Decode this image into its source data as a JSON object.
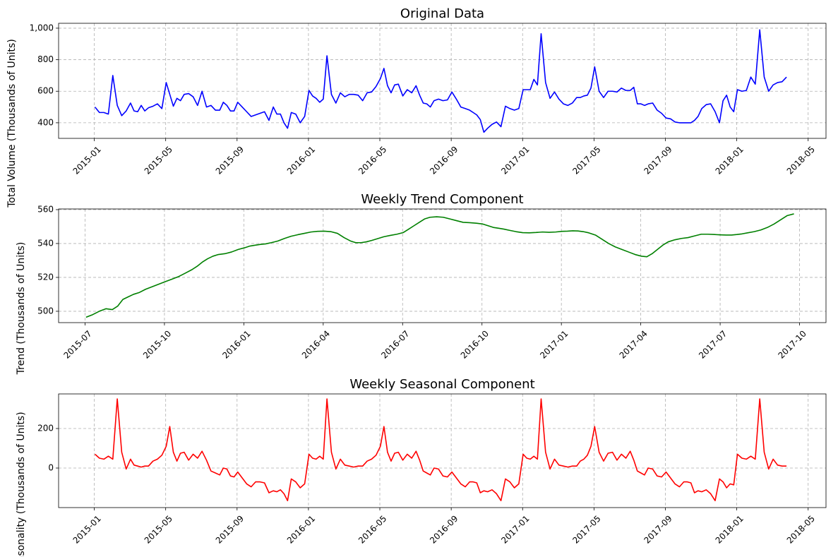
{
  "chart_data": [
    {
      "type": "line",
      "title": "Original Data",
      "y_label": "Total Volume (Thousands of Units)",
      "color": "#0000ff",
      "grid": true,
      "xlim": [
        "2014-11",
        "2018-06"
      ],
      "xticks": [
        "2015-01",
        "2015-05",
        "2015-09",
        "2016-01",
        "2016-05",
        "2016-09",
        "2017-01",
        "2017-05",
        "2017-09",
        "2018-01",
        "2018-05"
      ],
      "ylim": [
        301,
        1031
      ],
      "yticks": [
        400,
        600,
        800,
        {
          "value": 1000,
          "label": "1,000"
        }
      ],
      "x": [
        "2015-01",
        "2015-01",
        "2015-01",
        "2015-01",
        "2015-02",
        "2015-02",
        "2015-02",
        "2015-02",
        "2015-03",
        "2015-03",
        "2015-03",
        "2015-03",
        "2015-03",
        "2015-04",
        "2015-04",
        "2015-04",
        "2015-04",
        "2015-05",
        "2015-05",
        "2015-05",
        "2015-05",
        "2015-05",
        "2015-06",
        "2015-06",
        "2015-06",
        "2015-06",
        "2015-07",
        "2015-07",
        "2015-07",
        "2015-07",
        "2015-08",
        "2015-08",
        "2015-08",
        "2015-08",
        "2015-08",
        "2015-09",
        "2015-09",
        "2015-09",
        "2015-09",
        "2015-10",
        "2015-10",
        "2015-10",
        "2015-10",
        "2015-11",
        "2015-11",
        "2015-11",
        "2015-11",
        "2015-11",
        "2015-12",
        "2015-12",
        "2015-12",
        "2015-12",
        "2016-01",
        "2016-01",
        "2016-01",
        "2016-01",
        "2016-01",
        "2016-02",
        "2016-02",
        "2016-02",
        "2016-02",
        "2016-03",
        "2016-03",
        "2016-03",
        "2016-03",
        "2016-04",
        "2016-04",
        "2016-04",
        "2016-04",
        "2016-05",
        "2016-05",
        "2016-05",
        "2016-05",
        "2016-05",
        "2016-06",
        "2016-06",
        "2016-06",
        "2016-06",
        "2016-07",
        "2016-07",
        "2016-07",
        "2016-07",
        "2016-07",
        "2016-08",
        "2016-08",
        "2016-08",
        "2016-08",
        "2016-09",
        "2016-09",
        "2016-09",
        "2016-09",
        "2016-10",
        "2016-10",
        "2016-10",
        "2016-10",
        "2016-10",
        "2016-11",
        "2016-11",
        "2016-11",
        "2016-11",
        "2016-12",
        "2016-12",
        "2016-12",
        "2016-12",
        "2017-01",
        "2017-01",
        "2017-01",
        "2017-01",
        "2017-01",
        "2017-02",
        "2017-02",
        "2017-02",
        "2017-02",
        "2017-03",
        "2017-03",
        "2017-03",
        "2017-03",
        "2017-04",
        "2017-04",
        "2017-04",
        "2017-04",
        "2017-04",
        "2017-05",
        "2017-05",
        "2017-05",
        "2017-05",
        "2017-06",
        "2017-06",
        "2017-06",
        "2017-06",
        "2017-07",
        "2017-07",
        "2017-07",
        "2017-07",
        "2017-07",
        "2017-08",
        "2017-08",
        "2017-08",
        "2017-08",
        "2017-09",
        "2017-09",
        "2017-09",
        "2017-09",
        "2017-10",
        "2017-10",
        "2017-10",
        "2017-10",
        "2017-10",
        "2017-11",
        "2017-11",
        "2017-11",
        "2017-11",
        "2017-12",
        "2017-12",
        "2017-12",
        "2017-12",
        "2017-12",
        "2018-01",
        "2018-01",
        "2018-01",
        "2018-01",
        "2018-02",
        "2018-02",
        "2018-02",
        "2018-02",
        "2018-03",
        "2018-03",
        "2018-03",
        "2018-03"
      ],
      "values": [
        500,
        465,
        465,
        455,
        700,
        510,
        445,
        475,
        525,
        475,
        470,
        510,
        475,
        495,
        505,
        520,
        490,
        655,
        580,
        505,
        555,
        540,
        580,
        585,
        565,
        510,
        600,
        500,
        510,
        480,
        480,
        530,
        510,
        475,
        475,
        530,
        500,
        470,
        440,
        450,
        460,
        470,
        415,
        500,
        455,
        455,
        400,
        365,
        465,
        455,
        400,
        440,
        605,
        570,
        555,
        530,
        550,
        825,
        580,
        525,
        590,
        565,
        580,
        580,
        575,
        540,
        590,
        595,
        630,
        680,
        745,
        635,
        590,
        640,
        645,
        570,
        610,
        590,
        635,
        575,
        525,
        520,
        500,
        540,
        550,
        540,
        545,
        595,
        550,
        500,
        490,
        480,
        465,
        450,
        420,
        340,
        365,
        390,
        405,
        375,
        505,
        490,
        480,
        490,
        610,
        610,
        610,
        675,
        640,
        965,
        655,
        555,
        595,
        550,
        520,
        510,
        525,
        560,
        560,
        570,
        575,
        620,
        755,
        600,
        560,
        600,
        600,
        595,
        620,
        605,
        605,
        625,
        520,
        520,
        510,
        520,
        525,
        480,
        460,
        430,
        425,
        405,
        400,
        400,
        400,
        400,
        415,
        440,
        490,
        515,
        520,
        470,
        400,
        540,
        575,
        500,
        470,
        610,
        600,
        605,
        690,
        645,
        990,
        690,
        600,
        640,
        655,
        660,
        690
      ]
    },
    {
      "type": "line",
      "title": "Weekly Trend Component",
      "y_label": "Trend (Thousands of Units)",
      "color": "#008000",
      "grid": true,
      "xlim": [
        "2015-06",
        "2017-11"
      ],
      "xticks": [
        "2015-07",
        "2015-10",
        "2016-01",
        "2016-04",
        "2016-07",
        "2016-10",
        "2017-01",
        "2017-04",
        "2017-07",
        "2017-10"
      ],
      "ylim": [
        493.3,
        560.4
      ],
      "yticks": [
        500,
        520,
        540,
        560
      ],
      "x": [
        "2015-07",
        "2015-07",
        "2015-07",
        "2015-07",
        "2015-08",
        "2015-08",
        "2015-08",
        "2015-08",
        "2015-08",
        "2015-09",
        "2015-09",
        "2015-09",
        "2015-09",
        "2015-10",
        "2015-10",
        "2015-10",
        "2015-10",
        "2015-11",
        "2015-11",
        "2015-11",
        "2015-11",
        "2015-11",
        "2015-12",
        "2015-12",
        "2015-12",
        "2015-12",
        "2016-01",
        "2016-01",
        "2016-01",
        "2016-01",
        "2016-01",
        "2016-02",
        "2016-02",
        "2016-02",
        "2016-02",
        "2016-03",
        "2016-03",
        "2016-03",
        "2016-03",
        "2016-04",
        "2016-04",
        "2016-04",
        "2016-04",
        "2016-05",
        "2016-05",
        "2016-05",
        "2016-05",
        "2016-05",
        "2016-06",
        "2016-06",
        "2016-06",
        "2016-06",
        "2016-07",
        "2016-07",
        "2016-07",
        "2016-07",
        "2016-07",
        "2016-08",
        "2016-08",
        "2016-08",
        "2016-08",
        "2016-09",
        "2016-09",
        "2016-09",
        "2016-09",
        "2016-10",
        "2016-10",
        "2016-10",
        "2016-10",
        "2016-10",
        "2016-11",
        "2016-11",
        "2016-11",
        "2016-11",
        "2016-12",
        "2016-12",
        "2016-12",
        "2016-12",
        "2017-01",
        "2017-01",
        "2017-01",
        "2017-01",
        "2017-01",
        "2017-02",
        "2017-02",
        "2017-02",
        "2017-02",
        "2017-03",
        "2017-03",
        "2017-03",
        "2017-03",
        "2017-04",
        "2017-04",
        "2017-04",
        "2017-04",
        "2017-04",
        "2017-05",
        "2017-05",
        "2017-05",
        "2017-05",
        "2017-06",
        "2017-06",
        "2017-06",
        "2017-06",
        "2017-07",
        "2017-07",
        "2017-07",
        "2017-07",
        "2017-07",
        "2017-08",
        "2017-08",
        "2017-08",
        "2017-08",
        "2017-09",
        "2017-09",
        "2017-09",
        "2017-09"
      ],
      "values": [
        496.5,
        498,
        500,
        501.5,
        501,
        503,
        507,
        508.5,
        510,
        511,
        513,
        514.5,
        516,
        517.5,
        519,
        520.5,
        522.5,
        524.5,
        526.5,
        529,
        531,
        532.5,
        533.5,
        534,
        535,
        536.5,
        537.5,
        538.5,
        539,
        539.5,
        539.8,
        540.5,
        541.5,
        543,
        544.3,
        545.2,
        546,
        546.8,
        547.2,
        547.3,
        547,
        546,
        543.5,
        541.5,
        540.5,
        540.5,
        541,
        541.8,
        542.8,
        544,
        544.8,
        545.5,
        546.5,
        548.5,
        550.5,
        552.5,
        554.5,
        555.5,
        555.8,
        555.5,
        554.5,
        553.5,
        552.5,
        552.3,
        552,
        551.5,
        550.5,
        549.5,
        549,
        548.5,
        547.8,
        547,
        546.4,
        546.3,
        546.5,
        546.8,
        546.6,
        546.8,
        547.2,
        547.3,
        547.5,
        547.4,
        547,
        546.3,
        545,
        542.5,
        540,
        538,
        536.5,
        535,
        533.5,
        532.5,
        532.2,
        534,
        536.5,
        539,
        541,
        542.2,
        543,
        543.5,
        544.5,
        545.5,
        545.5,
        545.3,
        545.1,
        545,
        545,
        545.3,
        545.7,
        546.3,
        547,
        548,
        549.5,
        551.5,
        554,
        556.5,
        557.5
      ]
    },
    {
      "type": "line",
      "title": "Weekly Seasonal Component",
      "y_label": "Seasonality (Thousands of Units)",
      "color": "#ff0000",
      "grid": true,
      "xlim": [
        "2014-11",
        "2018-06"
      ],
      "xticks": [
        "2015-01",
        "2015-05",
        "2015-09",
        "2016-01",
        "2016-05",
        "2016-09",
        "2017-01",
        "2017-05",
        "2017-09",
        "2018-01",
        "2018-05"
      ],
      "ylim": [
        -200,
        375
      ],
      "yticks": [
        0,
        200
      ],
      "x": [
        "2015-01",
        "2015-01",
        "2015-01",
        "2015-01",
        "2015-02",
        "2015-02",
        "2015-02",
        "2015-02",
        "2015-03",
        "2015-03",
        "2015-03",
        "2015-03",
        "2015-03",
        "2015-04",
        "2015-04",
        "2015-04",
        "2015-04",
        "2015-05",
        "2015-05",
        "2015-05",
        "2015-05",
        "2015-05",
        "2015-06",
        "2015-06",
        "2015-06",
        "2015-06",
        "2015-07",
        "2015-07",
        "2015-07",
        "2015-07",
        "2015-08",
        "2015-08",
        "2015-08",
        "2015-08",
        "2015-08",
        "2015-09",
        "2015-09",
        "2015-09",
        "2015-09",
        "2015-10",
        "2015-10",
        "2015-10",
        "2015-10",
        "2015-11",
        "2015-11",
        "2015-11",
        "2015-11",
        "2015-11",
        "2015-12",
        "2015-12",
        "2015-12",
        "2015-12",
        "2016-01",
        "2016-01",
        "2016-01",
        "2016-01",
        "2016-01",
        "2016-02",
        "2016-02",
        "2016-02",
        "2016-02",
        "2016-03",
        "2016-03",
        "2016-03",
        "2016-03",
        "2016-04",
        "2016-04",
        "2016-04",
        "2016-04",
        "2016-05",
        "2016-05",
        "2016-05",
        "2016-05",
        "2016-05",
        "2016-06",
        "2016-06",
        "2016-06",
        "2016-06",
        "2016-07",
        "2016-07",
        "2016-07",
        "2016-07",
        "2016-07",
        "2016-08",
        "2016-08",
        "2016-08",
        "2016-08",
        "2016-09",
        "2016-09",
        "2016-09",
        "2016-09",
        "2016-10",
        "2016-10",
        "2016-10",
        "2016-10",
        "2016-10",
        "2016-11",
        "2016-11",
        "2016-11",
        "2016-11",
        "2016-12",
        "2016-12",
        "2016-12",
        "2016-12",
        "2017-01",
        "2017-01",
        "2017-01",
        "2017-01",
        "2017-01",
        "2017-02",
        "2017-02",
        "2017-02",
        "2017-02",
        "2017-03",
        "2017-03",
        "2017-03",
        "2017-03",
        "2017-04",
        "2017-04",
        "2017-04",
        "2017-04",
        "2017-04",
        "2017-05",
        "2017-05",
        "2017-05",
        "2017-05",
        "2017-06",
        "2017-06",
        "2017-06",
        "2017-06",
        "2017-07",
        "2017-07",
        "2017-07",
        "2017-07",
        "2017-07",
        "2017-08",
        "2017-08",
        "2017-08",
        "2017-08",
        "2017-09",
        "2017-09",
        "2017-09",
        "2017-09",
        "2017-10",
        "2017-10",
        "2017-10",
        "2017-10",
        "2017-10",
        "2017-11",
        "2017-11",
        "2017-11",
        "2017-11",
        "2017-12",
        "2017-12",
        "2017-12",
        "2017-12",
        "2017-12",
        "2018-01",
        "2018-01",
        "2018-01",
        "2018-01",
        "2018-02",
        "2018-02",
        "2018-02",
        "2018-02",
        "2018-03",
        "2018-03",
        "2018-03",
        "2018-03"
      ],
      "values": [
        70,
        50,
        45,
        60,
        45,
        350,
        80,
        -5,
        45,
        15,
        10,
        5,
        10,
        10,
        35,
        45,
        65,
        110,
        210,
        80,
        35,
        75,
        80,
        40,
        70,
        50,
        85,
        40,
        -15,
        -25,
        -35,
        0,
        -5,
        -40,
        -45,
        -20,
        -50,
        -80,
        -95,
        -70,
        -70,
        -75,
        -125,
        -115,
        -120,
        -110,
        -130,
        -165,
        -55,
        -70,
        -100,
        -80,
        70,
        50,
        45,
        60,
        45,
        350,
        80,
        -5,
        45,
        15,
        10,
        5,
        10,
        10,
        35,
        45,
        65,
        110,
        210,
        80,
        35,
        75,
        80,
        40,
        70,
        50,
        85,
        40,
        -15,
        -25,
        -35,
        0,
        -5,
        -40,
        -45,
        -20,
        -50,
        -80,
        -95,
        -70,
        -70,
        -75,
        -125,
        -115,
        -120,
        -110,
        -130,
        -165,
        -55,
        -70,
        -100,
        -80,
        70,
        50,
        45,
        60,
        45,
        350,
        80,
        -5,
        45,
        15,
        10,
        5,
        10,
        10,
        35,
        45,
        65,
        110,
        210,
        80,
        35,
        75,
        80,
        40,
        70,
        50,
        85,
        40,
        -15,
        -25,
        -35,
        0,
        -5,
        -40,
        -45,
        -20,
        -50,
        -80,
        -95,
        -70,
        -70,
        -75,
        -125,
        -115,
        -120,
        -110,
        -130,
        -165,
        -55,
        -70,
        -100,
        -80,
        -85,
        70,
        50,
        45,
        60,
        45,
        350,
        80,
        -5,
        45,
        15,
        10,
        10
      ]
    }
  ]
}
